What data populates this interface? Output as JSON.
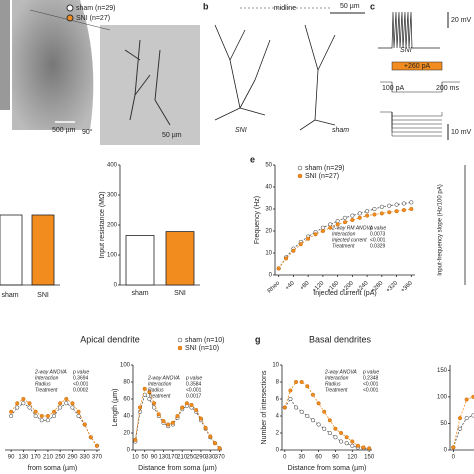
{
  "panel_a": {
    "legend": [
      "sham (n=29)",
      "SNI (n=27)"
    ],
    "scale_main": "500 µm",
    "scale_inset": "50 µm",
    "rotation": "90°"
  },
  "panel_b": {
    "label": "b",
    "midline": "midline",
    "scale": "50 µm",
    "left": "SNI",
    "right": "sham"
  },
  "panel_c": {
    "label": "c",
    "scale_v1": "20 mV",
    "trace": "SNI",
    "step": "+260 pA",
    "scale_i": "100 pA",
    "scale_t": "200 ms",
    "scale_v2": "10 mV"
  },
  "panel_left_bar": {
    "categories": [
      "sham",
      "SNI"
    ]
  },
  "panel_right_slope": {
    "ylabel": "Input-frequency slope (Hz/100 pA)"
  },
  "chart_data": [
    {
      "type": "bar",
      "ylabel": "Input resistance (MΩ)",
      "categories": [
        "sham",
        "SNI"
      ],
      "values": [
        165,
        178
      ],
      "colors": [
        "#ffffff",
        "#f28c1e"
      ],
      "ylim": [
        0,
        400
      ],
      "yticks": [
        0,
        100,
        200,
        300,
        400
      ]
    },
    {
      "type": "line",
      "label": "e",
      "xlabel": "Injected current (pA)",
      "ylabel": "Frequency (Hz)",
      "x": [
        0,
        20,
        40,
        60,
        80,
        100,
        120,
        140,
        160,
        180,
        200,
        220,
        240,
        260,
        280,
        300,
        320,
        340,
        360
      ],
      "xlim": [
        -10,
        370
      ],
      "xticks": [
        {
          "value": 0,
          "label": "Rheo"
        },
        {
          "value": 40,
          "label": "+40"
        },
        {
          "value": 80,
          "label": "+80"
        },
        {
          "value": 120,
          "label": "+120"
        },
        {
          "value": 160,
          "label": "+160"
        },
        {
          "value": 200,
          "label": "+200"
        },
        {
          "value": 240,
          "label": "+240"
        },
        {
          "value": 280,
          "label": "+280"
        },
        {
          "value": 320,
          "label": "+320"
        },
        {
          "value": 360,
          "label": "+360"
        }
      ],
      "ylim": [
        0,
        50
      ],
      "yticks": [
        0,
        10,
        20,
        30,
        40,
        50
      ],
      "series": [
        {
          "name": "sham (n=29)",
          "color": "#555555",
          "marker_fill": "#ffffff",
          "values": [
            3,
            8,
            12,
            15,
            17.5,
            19.5,
            21.5,
            23,
            24.5,
            26,
            27,
            28,
            29,
            30,
            31,
            31.5,
            32,
            32.5,
            33
          ]
        },
        {
          "name": "SNI (n=27)",
          "color": "#f28c1e",
          "marker_fill": "#f28c1e",
          "values": [
            3,
            7.5,
            11,
            14,
            16.5,
            18.5,
            20,
            21.5,
            23,
            24,
            25,
            26,
            27,
            27.5,
            28,
            28.5,
            29,
            29.5,
            30
          ]
        }
      ],
      "stats": {
        "title": "2-way RM ANOVA",
        "header": "p value",
        "rows": [
          [
            "Interaction",
            "0.0073"
          ],
          [
            "Injected current",
            "<0.001"
          ],
          [
            "Treatment",
            "0.0329"
          ]
        ]
      }
    },
    {
      "type": "line",
      "title": "Apical dendrite",
      "xlabel": "from soma (µm)",
      "x": [
        90,
        110,
        130,
        150,
        170,
        190,
        210,
        230,
        250,
        270,
        290,
        310,
        330,
        350,
        370
      ],
      "xlim": [
        70,
        380
      ],
      "xticks": [
        90,
        130,
        170,
        210,
        250,
        290,
        330,
        370
      ],
      "ylim": [
        0,
        10
      ],
      "series": [
        {
          "color": "#555555",
          "marker_fill": "#ffffff",
          "values": [
            4,
            5,
            5.5,
            5,
            4,
            3.5,
            3.5,
            4,
            5,
            5.5,
            5,
            4,
            3,
            1.5,
            0.5
          ]
        },
        {
          "color": "#f28c1e",
          "marker_fill": "#f28c1e",
          "values": [
            4.5,
            5.5,
            6,
            5.5,
            4.5,
            4,
            4,
            4.5,
            5.5,
            6,
            5.5,
            4.5,
            3,
            1.5,
            0.5
          ]
        }
      ],
      "stats": {
        "title": "2-way ANOVA",
        "header": "p value",
        "rows": [
          [
            "Interaction",
            "0.3694"
          ],
          [
            "Radius",
            "<0.001"
          ],
          [
            "Treatment",
            "0.0002"
          ]
        ]
      }
    },
    {
      "type": "line",
      "xlabel": "Distance from soma (µm)",
      "ylabel": "Length (µm)",
      "x": [
        10,
        30,
        50,
        70,
        90,
        110,
        130,
        150,
        170,
        190,
        210,
        230,
        250,
        270,
        290,
        310,
        330,
        350,
        370
      ],
      "xlim": [
        0,
        380
      ],
      "xticks": [
        10,
        50,
        90,
        130,
        170,
        210,
        250,
        290,
        330,
        370
      ],
      "ylim": [
        0,
        100
      ],
      "yticks": [
        0,
        20,
        40,
        60,
        80,
        100
      ],
      "series": [
        {
          "name": "sham (n=10)",
          "color": "#555555",
          "marker_fill": "#ffffff",
          "values": [
            10,
            45,
            65,
            60,
            50,
            40,
            32,
            28,
            30,
            38,
            48,
            52,
            50,
            45,
            35,
            25,
            15,
            8,
            2
          ]
        },
        {
          "name": "SNI (n=10)",
          "color": "#f28c1e",
          "marker_fill": "#f28c1e",
          "values": [
            12,
            50,
            72,
            68,
            55,
            42,
            34,
            30,
            32,
            40,
            50,
            55,
            53,
            47,
            37,
            26,
            16,
            8,
            2
          ]
        }
      ],
      "stats": {
        "title": "2-way ANOVA",
        "header": "p value",
        "rows": [
          [
            "Interaction",
            "0.3584"
          ],
          [
            "Radius",
            "<0.001"
          ],
          [
            "Treatment",
            "0.0017"
          ]
        ]
      }
    },
    {
      "type": "line",
      "label": "g",
      "title": "Basal dendrites",
      "xlabel": "Distance from soma (µm)",
      "ylabel": "Number of intersections",
      "x": [
        0,
        10,
        20,
        30,
        40,
        50,
        60,
        70,
        80,
        90,
        100,
        110,
        120,
        130,
        140,
        150
      ],
      "xlim": [
        -5,
        155
      ],
      "xticks": [
        0,
        30,
        60,
        90,
        120,
        150
      ],
      "ylim": [
        0,
        10
      ],
      "yticks": [
        0,
        2,
        4,
        6,
        8,
        10
      ],
      "series": [
        {
          "color": "#555555",
          "marker_fill": "#ffffff",
          "values": [
            5,
            6,
            5,
            4.5,
            4,
            3.5,
            3,
            2.5,
            2,
            1.5,
            1,
            0.8,
            0.5,
            0.3,
            0.2,
            0.1
          ]
        },
        {
          "color": "#f28c1e",
          "marker_fill": "#f28c1e",
          "values": [
            5,
            7,
            8,
            8,
            7.5,
            6.5,
            5.5,
            4.5,
            3.5,
            2.5,
            2,
            1.5,
            1,
            0.5,
            0.3,
            0.2
          ]
        }
      ],
      "stats": {
        "title": "2-way ANOVA",
        "header": "p value",
        "rows": [
          [
            "Interaction",
            "0.2348"
          ],
          [
            "Radius",
            "<0.001"
          ],
          [
            "Treatment",
            "<0.001"
          ]
        ]
      }
    },
    {
      "type": "line",
      "x": [
        0,
        10,
        20,
        30,
        40
      ],
      "xlim": [
        -5,
        40
      ],
      "xticks": [
        0
      ],
      "ylim": [
        0,
        160
      ],
      "yticks": [
        0,
        50,
        100,
        150
      ],
      "series": [
        {
          "color": "#555555",
          "marker_fill": "#ffffff",
          "values": [
            5,
            40,
            60,
            65,
            62
          ]
        },
        {
          "color": "#f28c1e",
          "marker_fill": "#f28c1e",
          "values": [
            5,
            60,
            95,
            100,
            95
          ]
        }
      ]
    }
  ]
}
